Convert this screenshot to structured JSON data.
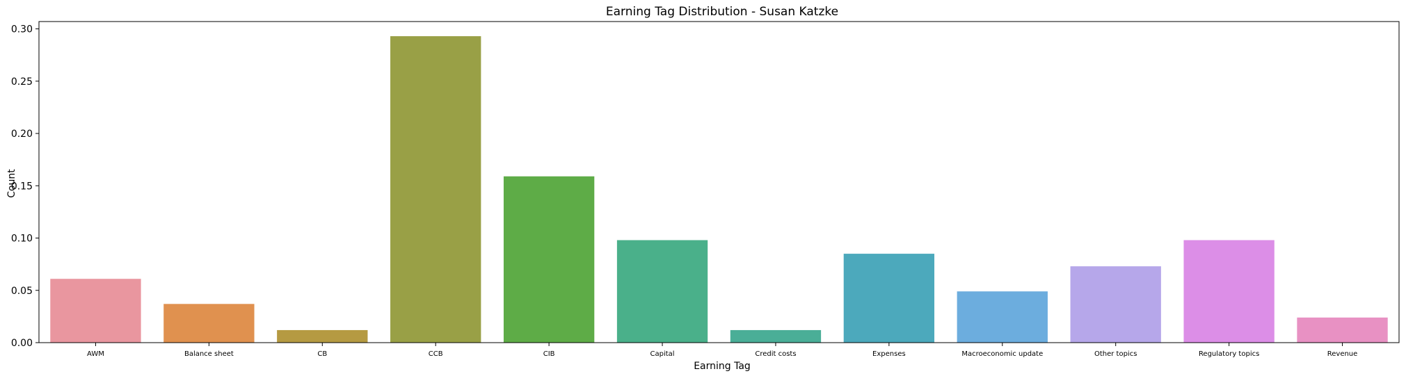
{
  "chart_data": {
    "type": "bar",
    "title": "Earning Tag Distribution - Susan Katzke",
    "xlabel": "Earning Tag",
    "ylabel": "Count",
    "ylim": [
      0,
      0.307
    ],
    "yticks": [
      "0.00",
      "0.05",
      "0.10",
      "0.15",
      "0.20",
      "0.25",
      "0.30"
    ],
    "ytick_values": [
      0,
      0.05,
      0.1,
      0.15,
      0.2,
      0.25,
      0.3
    ],
    "categories": [
      "AWM",
      "Balance sheet",
      "CB",
      "CCB",
      "CIB",
      "Capital",
      "Credit costs",
      "Expenses",
      "Macroeconomic update",
      "Other topics",
      "Regulatory topics",
      "Revenue"
    ],
    "values": [
      0.061,
      0.037,
      0.012,
      0.293,
      0.159,
      0.098,
      0.012,
      0.085,
      0.049,
      0.073,
      0.098,
      0.024
    ],
    "colors": [
      "#e9969f",
      "#e0914f",
      "#b59a42",
      "#99a046",
      "#5eac47",
      "#4ab08a",
      "#4aae97",
      "#4ca9bc",
      "#6cadde",
      "#b6a7ea",
      "#dc8ee7",
      "#e891c3"
    ],
    "grid": false,
    "legend": "none"
  }
}
